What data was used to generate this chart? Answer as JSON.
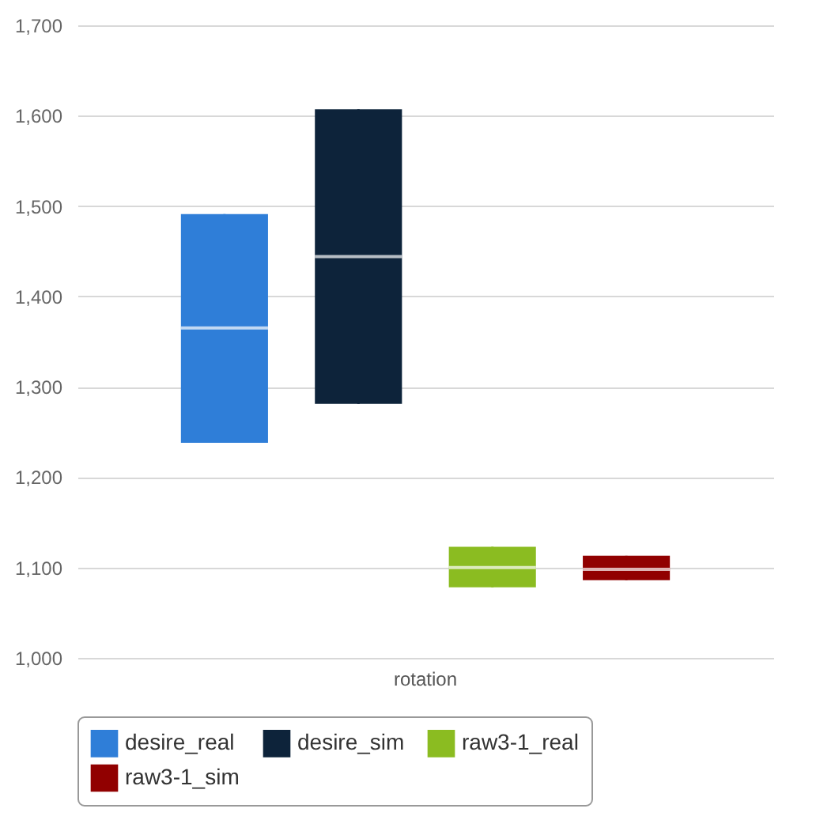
{
  "chart_data": {
    "type": "box",
    "categories": [
      "rotation"
    ],
    "series": [
      {
        "name": "desire_real",
        "color": "#2f7ed8",
        "boxes": [
          {
            "low": 1238,
            "q1": 1238,
            "median": 1365,
            "q3": 1491,
            "high": 1491
          }
        ]
      },
      {
        "name": "desire_sim",
        "color": "#0d233a",
        "boxes": [
          {
            "low": 1281,
            "q1": 1281,
            "median": 1444,
            "q3": 1607,
            "high": 1607
          }
        ]
      },
      {
        "name": "raw3-1_real",
        "color": "#8bbc21",
        "boxes": [
          {
            "low": 1078,
            "q1": 1078,
            "median": 1100,
            "q3": 1123,
            "high": 1123
          }
        ]
      },
      {
        "name": "raw3-1_sim",
        "color": "#910000",
        "boxes": [
          {
            "low": 1086,
            "q1": 1086,
            "median": 1098,
            "q3": 1113,
            "high": 1113
          }
        ]
      }
    ],
    "ylim": [
      1000,
      1700
    ],
    "yticks": [
      {
        "value": 1000,
        "label": "1,000"
      },
      {
        "value": 1100,
        "label": "1,100"
      },
      {
        "value": 1200,
        "label": "1,200"
      },
      {
        "value": 1300,
        "label": "1,300"
      },
      {
        "value": 1400,
        "label": "1,400"
      },
      {
        "value": 1500,
        "label": "1,500"
      },
      {
        "value": 1600,
        "label": "1,600"
      },
      {
        "value": 1700,
        "label": "1,700"
      }
    ],
    "grid": "y",
    "legend": "bottom"
  }
}
